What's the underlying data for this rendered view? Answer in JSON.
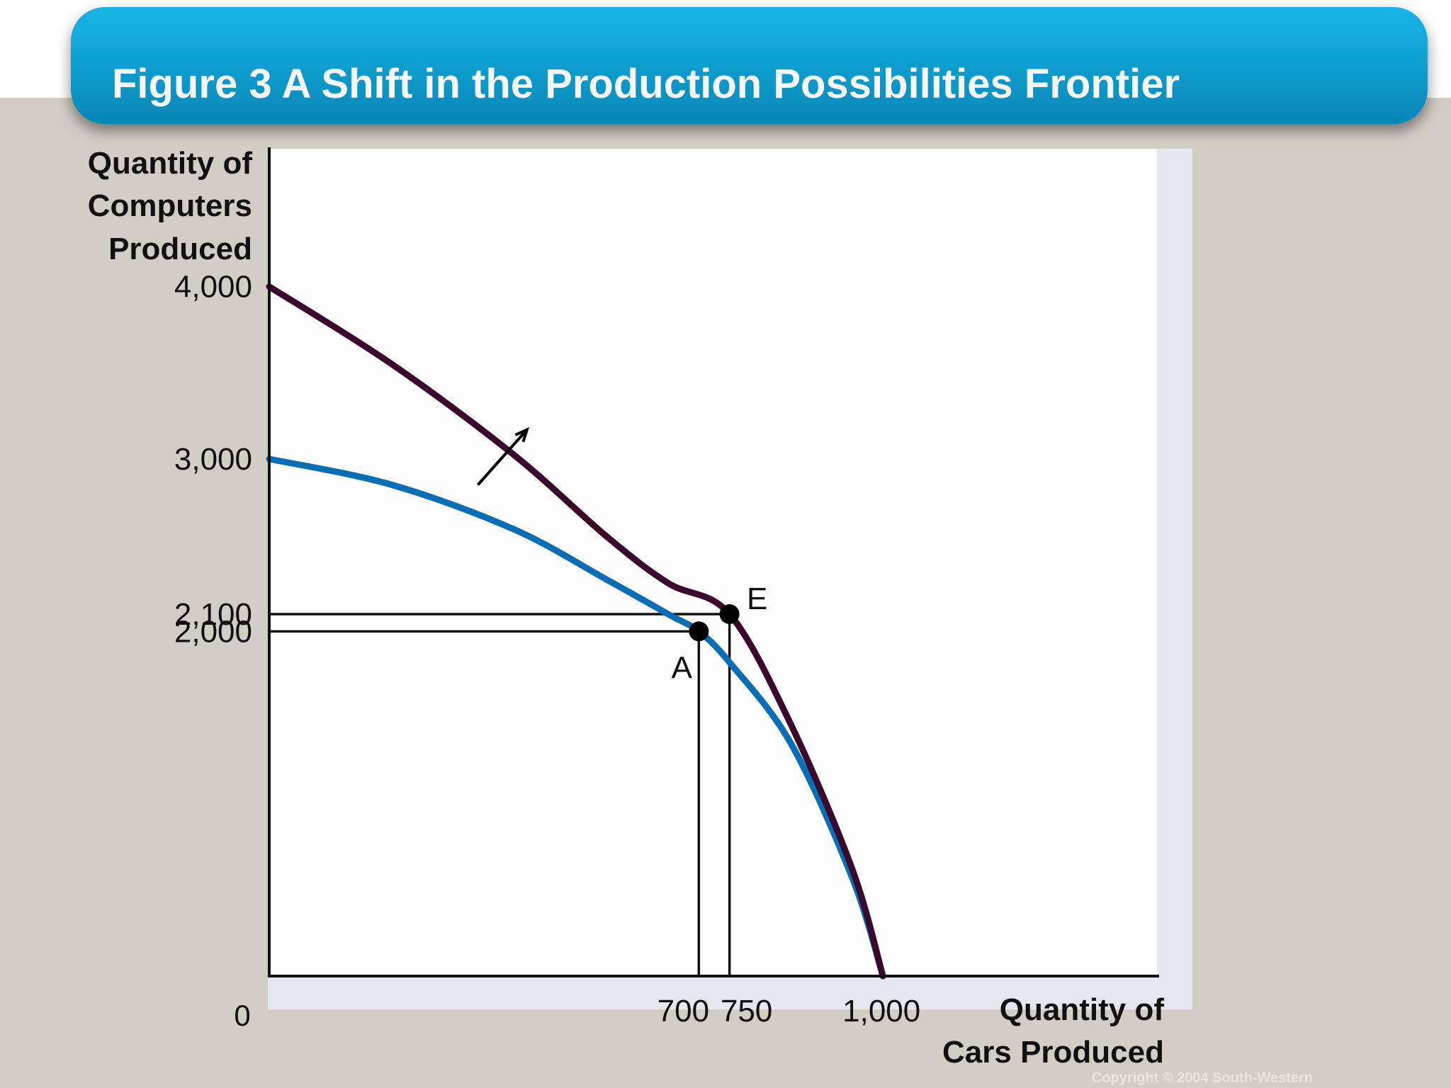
{
  "slide": {
    "title": "Figure 3 A Shift in the Production Possibilities Frontier",
    "copyright": "Copyright © 2004  South-Western"
  },
  "colors": {
    "background": "#d3cec5",
    "banner_light": "#18b4e6",
    "banner_dark": "#0587b7",
    "plot_bg": "#fdfdfd",
    "old_frontier": "#0b6db4",
    "new_frontier": "#3a0a2c",
    "axis": "#111111"
  },
  "chart_data": {
    "type": "line",
    "title": "Figure 3 A Shift in the Production Possibilities Frontier",
    "xlabel": [
      "Quantity of",
      "Cars Produced"
    ],
    "ylabel": [
      "Quantity of",
      "Computers",
      "Produced"
    ],
    "origin_label": "0",
    "xlim": [
      0,
      1450
    ],
    "ylim": [
      0,
      4800
    ],
    "x_ticks": [
      {
        "value": 700,
        "label": "700"
      },
      {
        "value": 750,
        "label": "750"
      },
      {
        "value": 1000,
        "label": "1,000"
      }
    ],
    "y_ticks": [
      {
        "value": 4000,
        "label": "4,000"
      },
      {
        "value": 3000,
        "label": "3,000"
      },
      {
        "value": 2100,
        "label": "2,100"
      },
      {
        "value": 2000,
        "label": "2,000"
      }
    ],
    "series": [
      {
        "key": "old",
        "color": "#0b6db4",
        "points": [
          [
            0,
            3000
          ],
          [
            200,
            2850
          ],
          [
            400,
            2590
          ],
          [
            550,
            2300
          ],
          [
            650,
            2100
          ],
          [
            700,
            2000
          ],
          [
            750,
            1820
          ],
          [
            850,
            1350
          ],
          [
            950,
            570
          ],
          [
            1000,
            0
          ]
        ]
      },
      {
        "key": "new",
        "color": "#3a0a2c",
        "points": [
          [
            0,
            4000
          ],
          [
            200,
            3550
          ],
          [
            400,
            3020
          ],
          [
            550,
            2550
          ],
          [
            650,
            2280
          ],
          [
            750,
            2100
          ],
          [
            850,
            1460
          ],
          [
            950,
            620
          ],
          [
            1000,
            0
          ]
        ]
      }
    ],
    "points": [
      {
        "label": "A",
        "x": 700,
        "y": 2000
      },
      {
        "label": "E",
        "x": 750,
        "y": 2100
      }
    ],
    "shift_arrow": {
      "from": [
        340,
        2850
      ],
      "to": [
        420,
        3170
      ]
    },
    "grid": false,
    "legend": "none"
  }
}
